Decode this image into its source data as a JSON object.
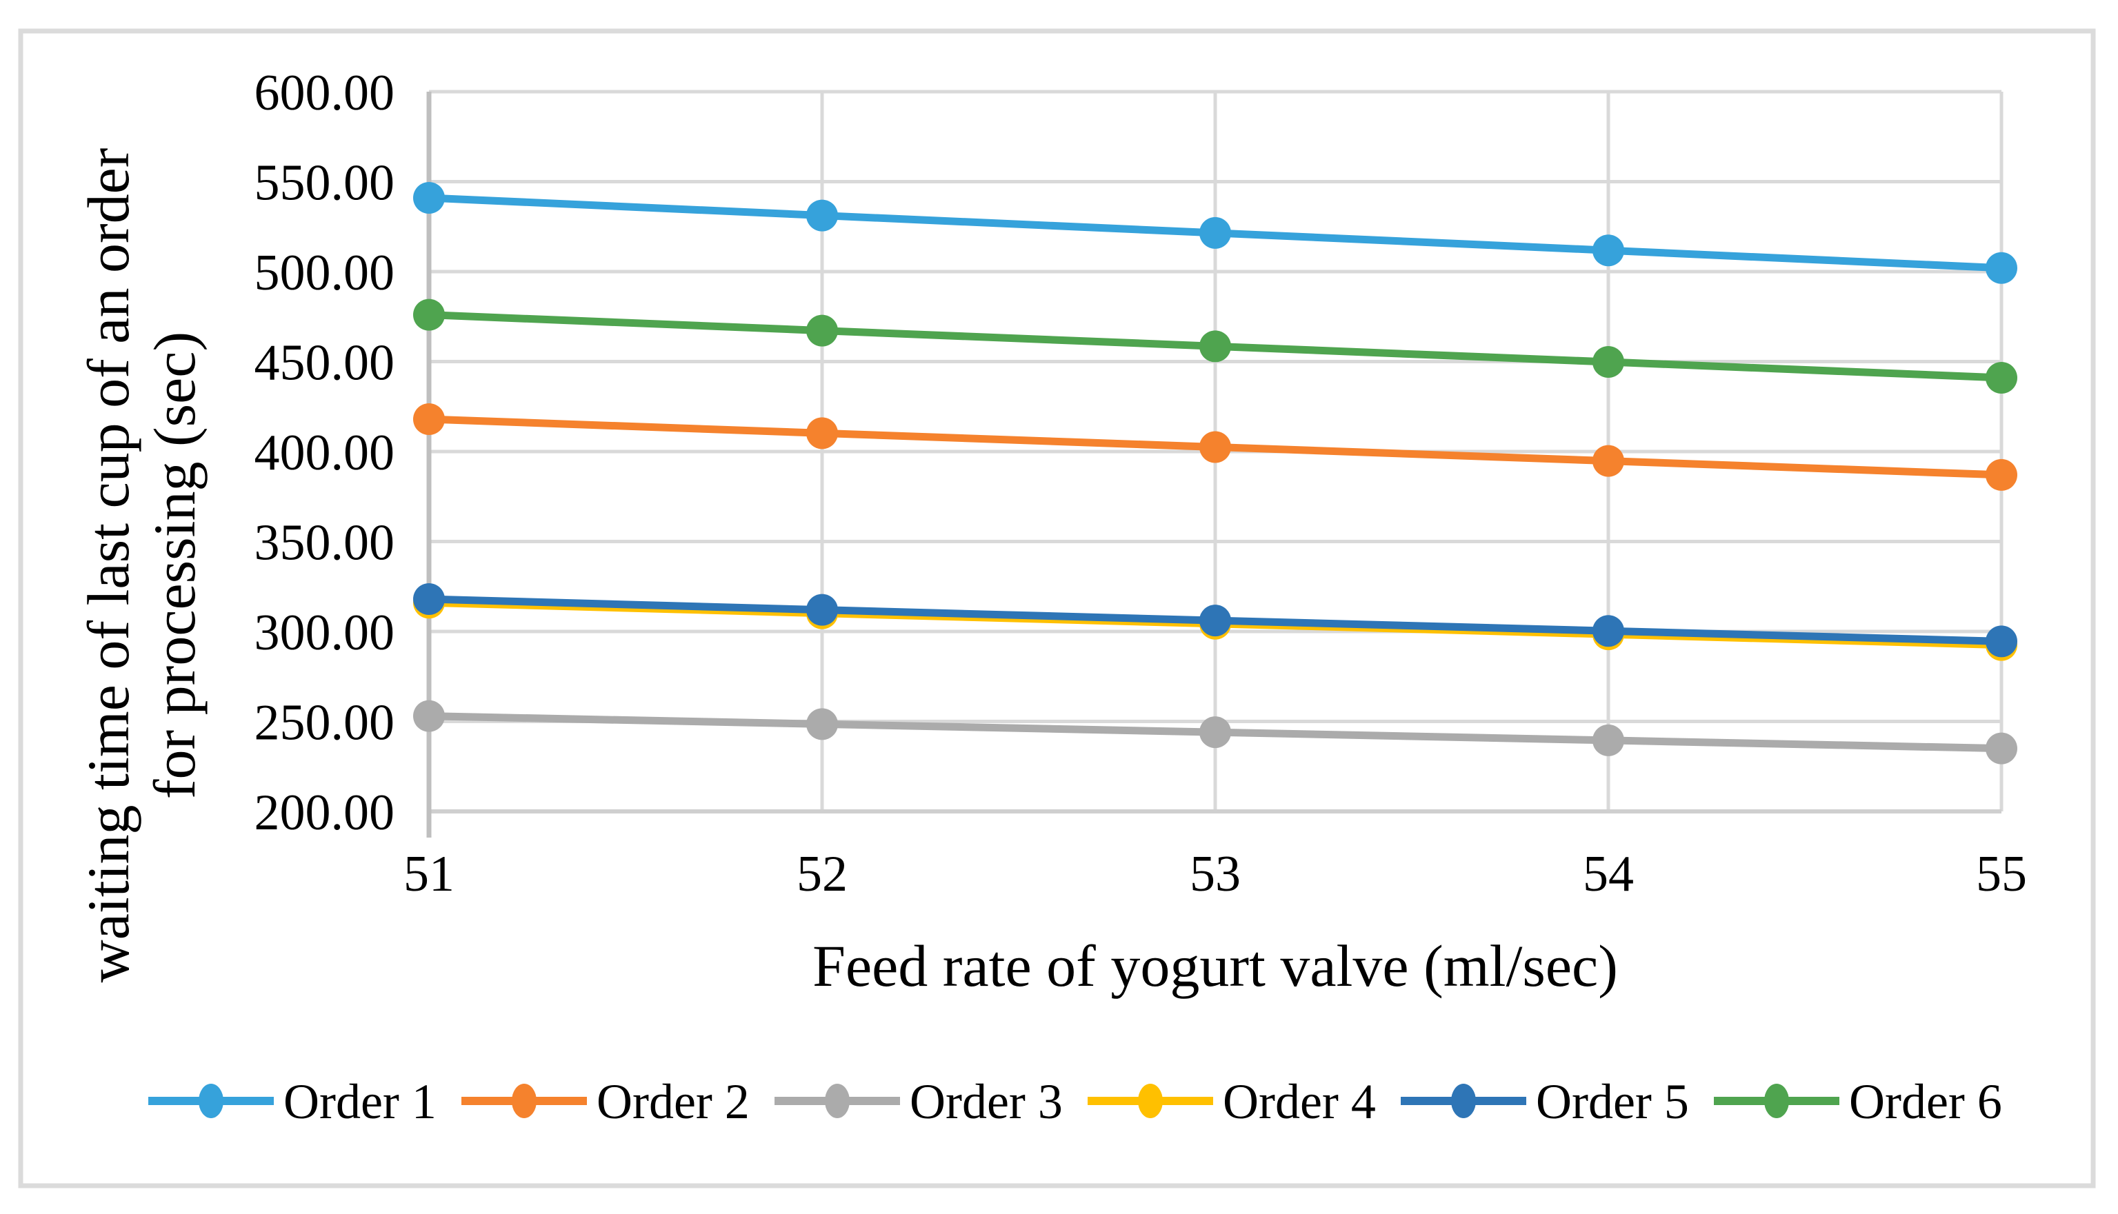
{
  "figure": {
    "background": "#FFFFFF",
    "border_color": "#DBDBDB",
    "gridline_color": "#D9D9D9",
    "y_axis_line_color": "#BFBFBF",
    "x_axis_line_color": "#CFCFCF"
  },
  "chart_data": {
    "type": "line",
    "title": "",
    "xlabel": "Feed rate of yogurt valve (ml/sec)",
    "ylabel_lines": [
      "waiting time of last cup of an order",
      "for processing (sec)"
    ],
    "x": [
      51,
      52,
      53,
      54,
      55
    ],
    "x_tick_labels": [
      "51",
      "52",
      "53",
      "54",
      "55"
    ],
    "xlim": [
      51,
      55
    ],
    "y_ticks": [
      200,
      250,
      300,
      350,
      400,
      450,
      500,
      550,
      600
    ],
    "y_tick_labels": [
      "200.00",
      "250.00",
      "300.00",
      "350.00",
      "400.00",
      "450.00",
      "500.00",
      "550.00",
      "600.00"
    ],
    "ylim": [
      200,
      600
    ],
    "grid": true,
    "legend_position": "bottom",
    "series": [
      {
        "name": "Order 1",
        "color": "#36A2DB",
        "values": [
          541.0,
          531.2,
          521.5,
          511.8,
          502.0
        ]
      },
      {
        "name": "Order 2",
        "color": "#F5822D",
        "values": [
          418.0,
          410.2,
          402.5,
          394.8,
          387.0
        ]
      },
      {
        "name": "Order 3",
        "color": "#ABABAB",
        "values": [
          253.0,
          248.5,
          244.0,
          239.5,
          235.0
        ]
      },
      {
        "name": "Order 4",
        "color": "#FFC000",
        "values": [
          316.0,
          310.1,
          304.3,
          298.4,
          292.5
        ]
      },
      {
        "name": "Order 5",
        "color": "#2E75B6",
        "values": [
          318.0,
          312.0,
          306.1,
          300.3,
          294.5
        ]
      },
      {
        "name": "Order 6",
        "color": "#4FA44F",
        "values": [
          476.0,
          467.2,
          458.5,
          449.8,
          441.0
        ]
      }
    ]
  }
}
